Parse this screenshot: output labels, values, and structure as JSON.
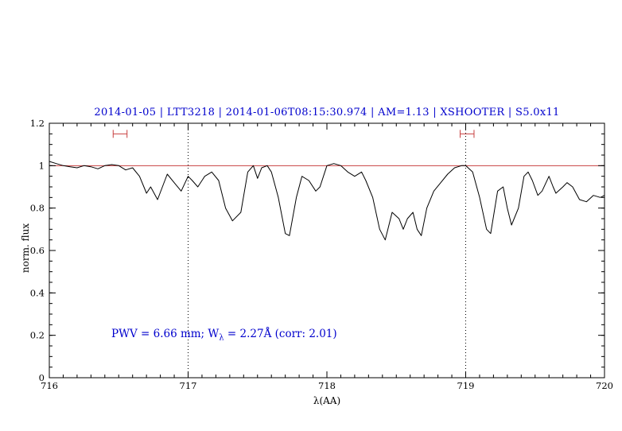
{
  "title": "2014-01-05 | LTT3218 | 2014-01-06T08:15:30.974 | AM=1.13 | XSHOOTER | S5.0x11",
  "annotation": {
    "prefix": "PWV = 6.66 mm; W",
    "sub": "λ",
    "suffix": " = 2.27Å (corr: 2.01)"
  },
  "colors": {
    "accent_blue": "#0000cd",
    "spectrum_black": "#000000",
    "continuum_red": "#c84040",
    "marker_red": "#c84040",
    "axis_black": "#000000"
  },
  "chart_data": {
    "type": "line",
    "title": "2014-01-05 | LTT3218 | 2014-01-06T08:15:30.974 | AM=1.13 | XSHOOTER | S5.0x11",
    "xlabel": "λ(AA)",
    "ylabel": "norm. flux",
    "xlim": [
      716,
      720
    ],
    "ylim": [
      0,
      1.2
    ],
    "grid": false,
    "legend": "none",
    "x_ticks": {
      "values": [
        716,
        717,
        718,
        719,
        720
      ],
      "labels": [
        "716",
        "717",
        "718",
        "719",
        "720"
      ]
    },
    "y_ticks": {
      "values": [
        0,
        0.2,
        0.4,
        0.6,
        0.8,
        1,
        1.2
      ],
      "labels": [
        "0",
        "0.2",
        "0.4",
        "0.6",
        "0.8",
        "1",
        "1.2"
      ]
    },
    "x_minor_step": 0.1,
    "y_minor_step": 0.05,
    "dotted_vlines_x": [
      717,
      719
    ],
    "continuum_y": 1.0,
    "range_markers": [
      {
        "x_center": 716.51,
        "half_width": 0.05,
        "y": 1.15
      },
      {
        "x_center": 719.01,
        "half_width": 0.05,
        "y": 1.15
      }
    ],
    "series": [
      {
        "name": "normalized-spectrum",
        "points": [
          [
            716.0,
            1.02
          ],
          [
            716.05,
            1.01
          ],
          [
            716.1,
            1.0
          ],
          [
            716.15,
            0.995
          ],
          [
            716.2,
            0.99
          ],
          [
            716.25,
            1.0
          ],
          [
            716.3,
            0.995
          ],
          [
            716.35,
            0.985
          ],
          [
            716.4,
            1.0
          ],
          [
            716.45,
            1.005
          ],
          [
            716.5,
            1.0
          ],
          [
            716.55,
            0.98
          ],
          [
            716.6,
            0.99
          ],
          [
            716.65,
            0.95
          ],
          [
            716.7,
            0.87
          ],
          [
            716.73,
            0.9
          ],
          [
            716.78,
            0.84
          ],
          [
            716.85,
            0.96
          ],
          [
            716.9,
            0.92
          ],
          [
            716.95,
            0.88
          ],
          [
            717.0,
            0.95
          ],
          [
            717.03,
            0.93
          ],
          [
            717.07,
            0.9
          ],
          [
            717.12,
            0.95
          ],
          [
            717.17,
            0.97
          ],
          [
            717.22,
            0.93
          ],
          [
            717.27,
            0.8
          ],
          [
            717.32,
            0.74
          ],
          [
            717.38,
            0.78
          ],
          [
            717.43,
            0.97
          ],
          [
            717.47,
            1.0
          ],
          [
            717.5,
            0.94
          ],
          [
            717.53,
            0.99
          ],
          [
            717.57,
            1.0
          ],
          [
            717.6,
            0.97
          ],
          [
            717.65,
            0.85
          ],
          [
            717.7,
            0.68
          ],
          [
            717.73,
            0.67
          ],
          [
            717.78,
            0.85
          ],
          [
            717.82,
            0.95
          ],
          [
            717.87,
            0.93
          ],
          [
            717.92,
            0.88
          ],
          [
            717.95,
            0.9
          ],
          [
            718.0,
            1.0
          ],
          [
            718.05,
            1.01
          ],
          [
            718.1,
            1.0
          ],
          [
            718.15,
            0.97
          ],
          [
            718.2,
            0.95
          ],
          [
            718.25,
            0.97
          ],
          [
            718.28,
            0.93
          ],
          [
            718.33,
            0.85
          ],
          [
            718.38,
            0.7
          ],
          [
            718.42,
            0.65
          ],
          [
            718.47,
            0.78
          ],
          [
            718.52,
            0.75
          ],
          [
            718.55,
            0.7
          ],
          [
            718.58,
            0.75
          ],
          [
            718.62,
            0.78
          ],
          [
            718.65,
            0.7
          ],
          [
            718.68,
            0.67
          ],
          [
            718.72,
            0.8
          ],
          [
            718.77,
            0.88
          ],
          [
            718.82,
            0.92
          ],
          [
            718.87,
            0.96
          ],
          [
            718.92,
            0.99
          ],
          [
            718.97,
            1.0
          ],
          [
            719.0,
            1.0
          ],
          [
            719.05,
            0.97
          ],
          [
            719.1,
            0.85
          ],
          [
            719.15,
            0.7
          ],
          [
            719.18,
            0.68
          ],
          [
            719.23,
            0.88
          ],
          [
            719.27,
            0.9
          ],
          [
            719.3,
            0.8
          ],
          [
            719.33,
            0.72
          ],
          [
            719.38,
            0.8
          ],
          [
            719.42,
            0.95
          ],
          [
            719.45,
            0.97
          ],
          [
            719.48,
            0.93
          ],
          [
            719.52,
            0.86
          ],
          [
            719.55,
            0.88
          ],
          [
            719.6,
            0.95
          ],
          [
            719.63,
            0.9
          ],
          [
            719.65,
            0.87
          ],
          [
            719.7,
            0.9
          ],
          [
            719.73,
            0.92
          ],
          [
            719.77,
            0.9
          ],
          [
            719.82,
            0.84
          ],
          [
            719.87,
            0.83
          ],
          [
            719.92,
            0.86
          ],
          [
            719.97,
            0.85
          ],
          [
            720.0,
            0.86
          ]
        ]
      }
    ]
  }
}
